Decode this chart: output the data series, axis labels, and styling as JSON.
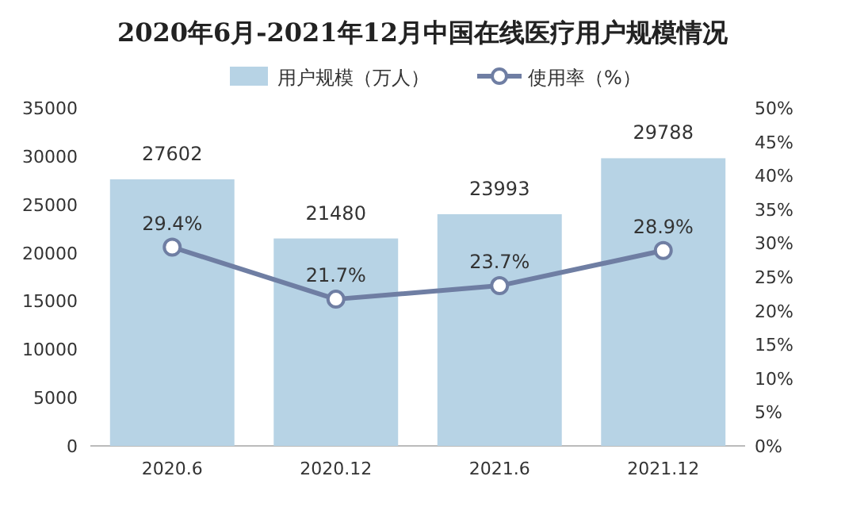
{
  "chart_data": {
    "type": "bar",
    "title": "2020年6月-2021年12月中国在线医疗用户规模情况",
    "categories": [
      "2020.6",
      "2020.12",
      "2021.6",
      "2021.12"
    ],
    "series": [
      {
        "name": "用户规模（万人）",
        "color": "#b7d3e5",
        "values": [
          27602,
          21480,
          23993,
          29788
        ],
        "value_labels": [
          "27602",
          "21480",
          "23993",
          "29788"
        ]
      },
      {
        "name": "使用率（%）",
        "type": "line",
        "axis": "y2",
        "color": "#6f7ea3",
        "marker": "circle",
        "values": [
          29.4,
          21.7,
          23.7,
          28.9
        ],
        "value_labels": [
          "29.4%",
          "21.7%",
          "23.7%",
          "28.9%"
        ]
      }
    ],
    "ylim": [
      0,
      35000
    ],
    "yticks": [
      0,
      5000,
      10000,
      15000,
      20000,
      25000,
      30000,
      35000
    ],
    "y2lim": [
      0,
      50
    ],
    "y2ticks": [
      {
        "value": 0,
        "label": "0%"
      },
      {
        "value": 5,
        "label": "5%"
      },
      {
        "value": 10,
        "label": "10%"
      },
      {
        "value": 15,
        "label": "15%"
      },
      {
        "value": 20,
        "label": "20%"
      },
      {
        "value": 25,
        "label": "25%"
      },
      {
        "value": 30,
        "label": "30%"
      },
      {
        "value": 35,
        "label": "35%"
      },
      {
        "value": 40,
        "label": "40%"
      },
      {
        "value": 45,
        "label": "45%"
      },
      {
        "value": 50,
        "label": "50%"
      }
    ],
    "legend": "top"
  }
}
